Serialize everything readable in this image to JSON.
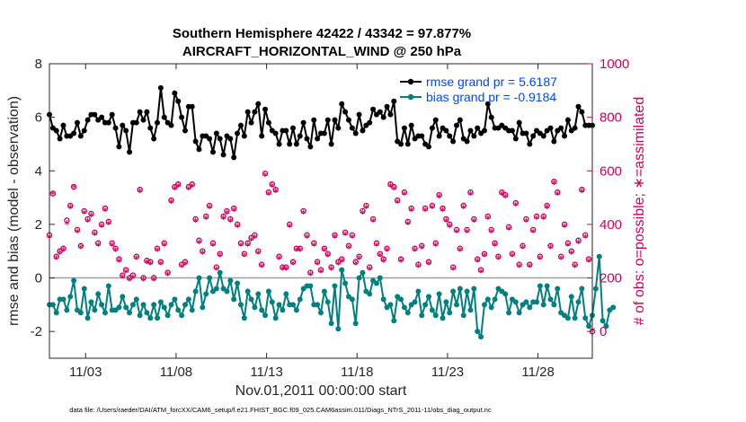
{
  "chart_data": {
    "type": "line",
    "title_line1": "Southern Hemisphere 42422 / 43342 = 97.877%",
    "title_line2": "AIRCRAFT_HORIZONTAL_WIND @ 250 hPa",
    "xlabel": "Nov.01,2011 00:00:00 start",
    "ylabel_left": "rmse and bias (model - observation)",
    "ylabel_right": "# of obs: o=possible; ∗=assimilated",
    "footnote": "data file: /Users/raeder/DAI/ATM_forcXX/CAM6_setup/f.e21.FHIST_BGC.f09_025.CAM6assim.011/Diags_NTrS_2011-11/obs_diag_output.nc",
    "xlim": [
      1,
      31
    ],
    "ylim_left": [
      -3,
      8
    ],
    "ylim_right": [
      -100,
      1000
    ],
    "xticks": [
      3,
      8,
      13,
      18,
      23,
      28
    ],
    "xtick_labels": [
      "11/03",
      "11/08",
      "11/13",
      "11/18",
      "11/23",
      "11/28"
    ],
    "yticks_left": [
      -2,
      0,
      2,
      4,
      6,
      8
    ],
    "yticks_right": [
      0,
      200,
      400,
      600,
      800,
      1000
    ],
    "colors": {
      "rmse": "#000000",
      "bias": "#008080",
      "obs": "#d1005a",
      "zero": "#a0a0a0",
      "legend_text": "#0047ff"
    },
    "series": [
      {
        "name": "rmse grand pr = 5.6187",
        "axis": "left",
        "values": [
          6.1,
          5.6,
          5.5,
          5.2,
          5.7,
          5.3,
          5.3,
          5.4,
          5.8,
          5.3,
          5.5,
          5.9,
          6.1,
          6.1,
          5.9,
          6.0,
          5.8,
          5.8,
          6.1,
          5.6,
          4.9,
          5.7,
          5.5,
          4.7,
          5.8,
          5.8,
          6.2,
          5.9,
          6.2,
          5.6,
          5.2,
          5.8,
          7.1,
          6.0,
          5.8,
          5.7,
          6.9,
          6.6,
          6.0,
          5.5,
          6.4,
          6.4,
          5.1,
          4.8,
          5.3,
          5.3,
          5.2,
          4.7,
          5.4,
          5.2,
          4.6,
          5.3,
          5.2,
          4.5,
          5.4,
          5.7,
          5.3,
          6.2,
          5.8,
          6.2,
          6.5,
          5.3,
          6.3,
          5.8,
          5.5,
          5.4,
          5.0,
          5.5,
          5.5,
          5.0,
          5.6,
          5.0,
          5.3,
          5.8,
          5.2,
          4.9,
          5.9,
          5.2,
          5.4,
          5.4,
          5.9,
          5.0,
          5.9,
          5.6,
          6.5,
          6.2,
          5.9,
          5.6,
          5.4,
          6.1,
          5.5,
          5.7,
          5.8,
          6.3,
          6.1,
          6.2,
          6.0,
          6.4,
          6.1,
          6.6,
          5.1,
          5.0,
          5.6,
          5.0,
          5.7,
          5.2,
          5.3,
          5.3,
          5.0,
          4.9,
          5.6,
          5.9,
          5.3,
          5.6,
          5.5,
          5.3,
          5.1,
          5.7,
          5.9,
          5.2,
          5.1,
          5.5,
          5.3,
          5.6,
          5.4,
          5.5,
          6.5,
          6.0,
          5.6,
          5.6,
          5.7,
          5.6,
          5.5,
          5.5,
          5.2,
          5.8,
          5.4,
          5.4,
          5.0,
          5.3,
          5.5,
          5.4,
          5.3,
          5.5,
          5.6,
          5.1,
          5.5,
          5.6,
          5.3,
          5.9,
          5.5,
          5.6,
          6.4,
          6.2,
          5.7,
          5.7,
          5.7
        ]
      },
      {
        "name": "bias grand pr = -0.9184",
        "axis": "left",
        "values": [
          -1.0,
          -1.0,
          -1.3,
          -0.8,
          -0.8,
          -1.2,
          -0.7,
          -0.1,
          -1.2,
          -1.3,
          -0.4,
          -1.5,
          -0.9,
          -1.2,
          -0.6,
          -1.0,
          -1.3,
          -0.3,
          -1.2,
          -1.2,
          -1.1,
          -0.7,
          -1.1,
          -1.3,
          -1.0,
          -0.8,
          -1.4,
          -1.0,
          -1.3,
          -1.5,
          -1.0,
          -1.5,
          -0.9,
          -1.1,
          -1.4,
          -1.0,
          -0.8,
          -1.2,
          -1.4,
          -1.0,
          -0.8,
          -1.2,
          -0.5,
          0.0,
          -1.1,
          -0.6,
          0.0,
          -0.5,
          -0.4,
          0.2,
          -0.4,
          -0.5,
          -0.1,
          -0.8,
          -0.2,
          -1.0,
          -1.5,
          -0.5,
          -0.8,
          -1.1,
          -0.6,
          -1.2,
          -1.4,
          -0.5,
          -0.9,
          -1.5,
          -1.0,
          -1.2,
          -0.6,
          -1.0,
          -1.0,
          -1.2,
          -0.8,
          -0.4,
          -0.3,
          -0.3,
          -1.0,
          -1.0,
          -1.3,
          -0.5,
          -0.9,
          -1.7,
          -0.3,
          -1.9,
          0.3,
          -0.2,
          -0.7,
          -0.8,
          -1.7,
          0.0,
          0.2,
          -0.5,
          -0.6,
          -0.1,
          -0.2,
          0.0,
          -0.8,
          -1.1,
          -1.0,
          -1.6,
          -0.7,
          -0.8,
          -1.1,
          -1.3,
          -1.0,
          -0.9,
          -0.5,
          -1.4,
          -1.0,
          -0.7,
          -1.2,
          -1.4,
          -0.6,
          -1.5,
          -0.9,
          -1.3,
          -0.5,
          -1.0,
          -0.4,
          -1.4,
          -0.5,
          -1.2,
          -0.4,
          -2.0,
          -2.2,
          -1.0,
          -0.8,
          -1.1,
          -0.8,
          -0.4,
          -0.5,
          -0.6,
          -1.3,
          -0.8,
          -0.9,
          -1.3,
          -1.0,
          -0.9,
          -1.1,
          -0.9,
          -0.9,
          -0.3,
          -1.0,
          -0.3,
          -0.8,
          -1.0,
          -0.4,
          -1.3,
          -1.4,
          -1.5,
          -0.7,
          -1.5,
          -0.9,
          -0.4,
          -1.5,
          -1.8,
          -1.4,
          -0.4,
          0.8,
          -1.6,
          -1.8,
          -1.2,
          -1.1
        ]
      },
      {
        "name": "obs possible",
        "axis": "right",
        "values": [
          360,
          515,
          280,
          300,
          310,
          415,
          470,
          540,
          380,
          320,
          450,
          420,
          440,
          370,
          330,
          400,
          460,
          410,
          330,
          310,
          270,
          210,
          230,
          200,
          210,
          280,
          530,
          200,
          265,
          260,
          200,
          310,
          260,
          330,
          220,
          490,
          540,
          550,
          250,
          260,
          540,
          550,
          420,
          340,
          300,
          430,
          470,
          330,
          240,
          290,
          430,
          450,
          420,
          460,
          400,
          330,
          290,
          330,
          350,
          360,
          300,
          250,
          590,
          520,
          550,
          530,
          280,
          240,
          240,
          400,
          260,
          310,
          310,
          450,
          360,
          220,
          330,
          260,
          230,
          310,
          290,
          240,
          360,
          260,
          270,
          370,
          320,
          360,
          260,
          280,
          450,
          470,
          240,
          420,
          330,
          290,
          270,
          310,
          550,
          540,
          490,
          270,
          520,
          410,
          460,
          310,
          250,
          320,
          460,
          260,
          470,
          330,
          510,
          460,
          420,
          400,
          240,
          380,
          310,
          470,
          380,
          520,
          420,
          270,
          230,
          290,
          430,
          380,
          330,
          280,
          520,
          510,
          390,
          290,
          480,
          250,
          320,
          420,
          250,
          380,
          430,
          280,
          430,
          470,
          320,
          560,
          520,
          280,
          400,
          330,
          300,
          250,
          340,
          530,
          360,
          270,
          0
        ]
      },
      {
        "name": "obs assimilated",
        "axis": "right",
        "values": [
          350,
          510,
          270,
          290,
          300,
          400,
          460,
          535,
          370,
          310,
          440,
          410,
          430,
          360,
          320,
          390,
          450,
          400,
          320,
          300,
          260,
          200,
          220,
          190,
          200,
          270,
          520,
          190,
          255,
          250,
          190,
          300,
          250,
          320,
          210,
          480,
          530,
          540,
          240,
          250,
          530,
          540,
          410,
          330,
          290,
          420,
          460,
          320,
          230,
          280,
          420,
          440,
          410,
          450,
          390,
          320,
          280,
          320,
          340,
          350,
          290,
          240,
          580,
          510,
          540,
          520,
          270,
          230,
          230,
          390,
          250,
          300,
          300,
          440,
          350,
          210,
          320,
          250,
          220,
          300,
          280,
          230,
          350,
          250,
          260,
          360,
          310,
          350,
          250,
          270,
          440,
          460,
          230,
          410,
          320,
          280,
          260,
          300,
          540,
          530,
          480,
          260,
          510,
          400,
          450,
          300,
          240,
          310,
          450,
          250,
          460,
          320,
          500,
          450,
          410,
          390,
          230,
          370,
          300,
          460,
          370,
          510,
          410,
          260,
          220,
          280,
          420,
          370,
          320,
          270,
          510,
          500,
          380,
          280,
          470,
          240,
          310,
          410,
          240,
          370,
          420,
          270,
          420,
          460,
          310,
          550,
          510,
          270,
          390,
          320,
          290,
          240,
          330,
          520,
          350,
          260,
          0
        ]
      }
    ],
    "legend_position": "top-right"
  }
}
